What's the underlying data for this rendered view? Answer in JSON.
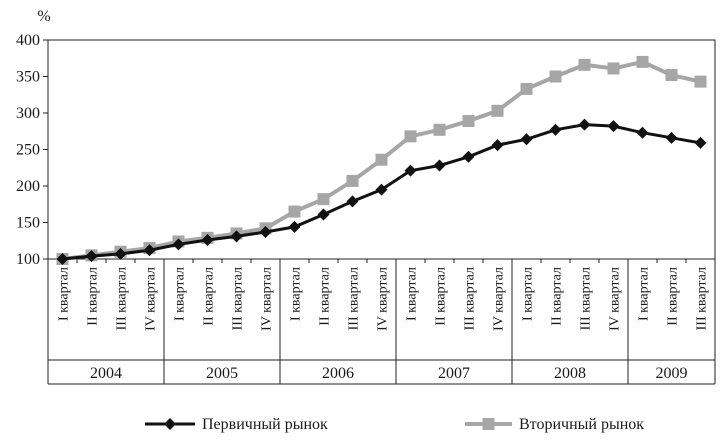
{
  "chart_data": {
    "type": "line",
    "unit_label": "%",
    "ylim": [
      100,
      400
    ],
    "yticks": [
      100,
      150,
      200,
      250,
      300,
      350,
      400
    ],
    "categories": [
      {
        "quarter": "I квартал",
        "year": "2004"
      },
      {
        "quarter": "II квартал",
        "year": "2004"
      },
      {
        "quarter": "III квартал",
        "year": "2004"
      },
      {
        "quarter": "IV квартал",
        "year": "2004"
      },
      {
        "quarter": "I квартал",
        "year": "2005"
      },
      {
        "quarter": "II квартал",
        "year": "2005"
      },
      {
        "quarter": "III квартал",
        "year": "2005"
      },
      {
        "quarter": "IV квартал",
        "year": "2005"
      },
      {
        "quarter": "I квартал",
        "year": "2006"
      },
      {
        "quarter": "II квартал",
        "year": "2006"
      },
      {
        "quarter": "III квартал",
        "year": "2006"
      },
      {
        "quarter": "IV квартал",
        "year": "2006"
      },
      {
        "quarter": "I квартал",
        "year": "2007"
      },
      {
        "quarter": "II квартал",
        "year": "2007"
      },
      {
        "quarter": "III квартал",
        "year": "2007"
      },
      {
        "quarter": "IV квартал",
        "year": "2007"
      },
      {
        "quarter": "I квартал",
        "year": "2008"
      },
      {
        "quarter": "II квартал",
        "year": "2008"
      },
      {
        "quarter": "III квартал",
        "year": "2008"
      },
      {
        "quarter": "IV квартал",
        "year": "2008"
      },
      {
        "quarter": "I квартал",
        "year": "2009"
      },
      {
        "quarter": "II квартал",
        "year": "2009"
      },
      {
        "quarter": "III квартал",
        "year": "2009"
      }
    ],
    "years": [
      "2004",
      "2005",
      "2006",
      "2007",
      "2008",
      "2009"
    ],
    "series": [
      {
        "name": "Первичный рынок",
        "color": "#111111",
        "marker": "diamond",
        "values": [
          100,
          104,
          107,
          112,
          120,
          126,
          131,
          137,
          144,
          161,
          179,
          195,
          221,
          228,
          240,
          256,
          264,
          277,
          284,
          282,
          273,
          266,
          259
        ]
      },
      {
        "name": "Вторичный рынок",
        "color": "#a6a6a6",
        "marker": "square",
        "values": [
          100,
          105,
          110,
          115,
          124,
          129,
          135,
          142,
          165,
          182,
          207,
          236,
          268,
          277,
          289,
          303,
          333,
          350,
          366,
          361,
          370,
          352,
          343
        ]
      }
    ],
    "grid": false,
    "legend_position": "bottom"
  }
}
